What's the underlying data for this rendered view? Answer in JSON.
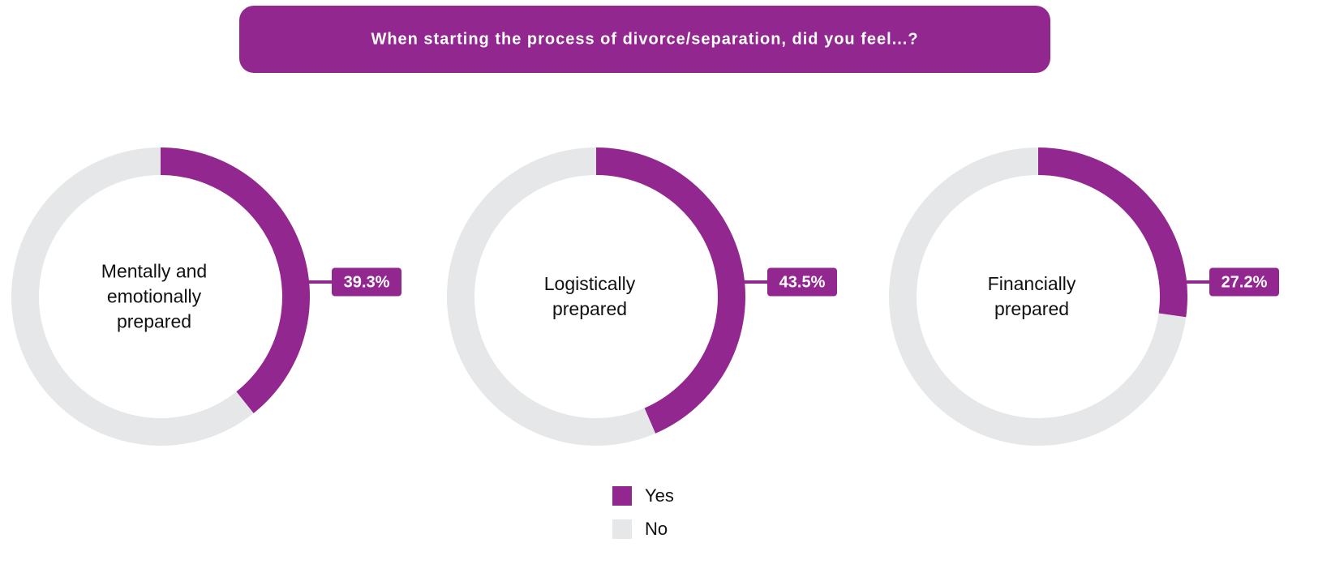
{
  "title": "When starting the process of divorce/separation, did you feel...?",
  "chart_data": [
    {
      "type": "pie",
      "label": "Mentally and emotionally prepared",
      "categories": [
        "Yes",
        "No"
      ],
      "values": [
        39.3,
        60.7
      ],
      "value_labels": [
        "39.3%",
        null
      ],
      "colors": [
        "#92278f",
        "#e6e7e8"
      ]
    },
    {
      "type": "pie",
      "label": "Logistically prepared",
      "categories": [
        "Yes",
        "No"
      ],
      "values": [
        43.5,
        56.5
      ],
      "value_labels": [
        "43.5%",
        null
      ],
      "colors": [
        "#92278f",
        "#e6e7e8"
      ]
    },
    {
      "type": "pie",
      "label": "Financially prepared",
      "categories": [
        "Yes",
        "No"
      ],
      "values": [
        27.2,
        72.8
      ],
      "value_labels": [
        "27.2%",
        null
      ],
      "colors": [
        "#92278f",
        "#e6e7e8"
      ]
    }
  ]
}
